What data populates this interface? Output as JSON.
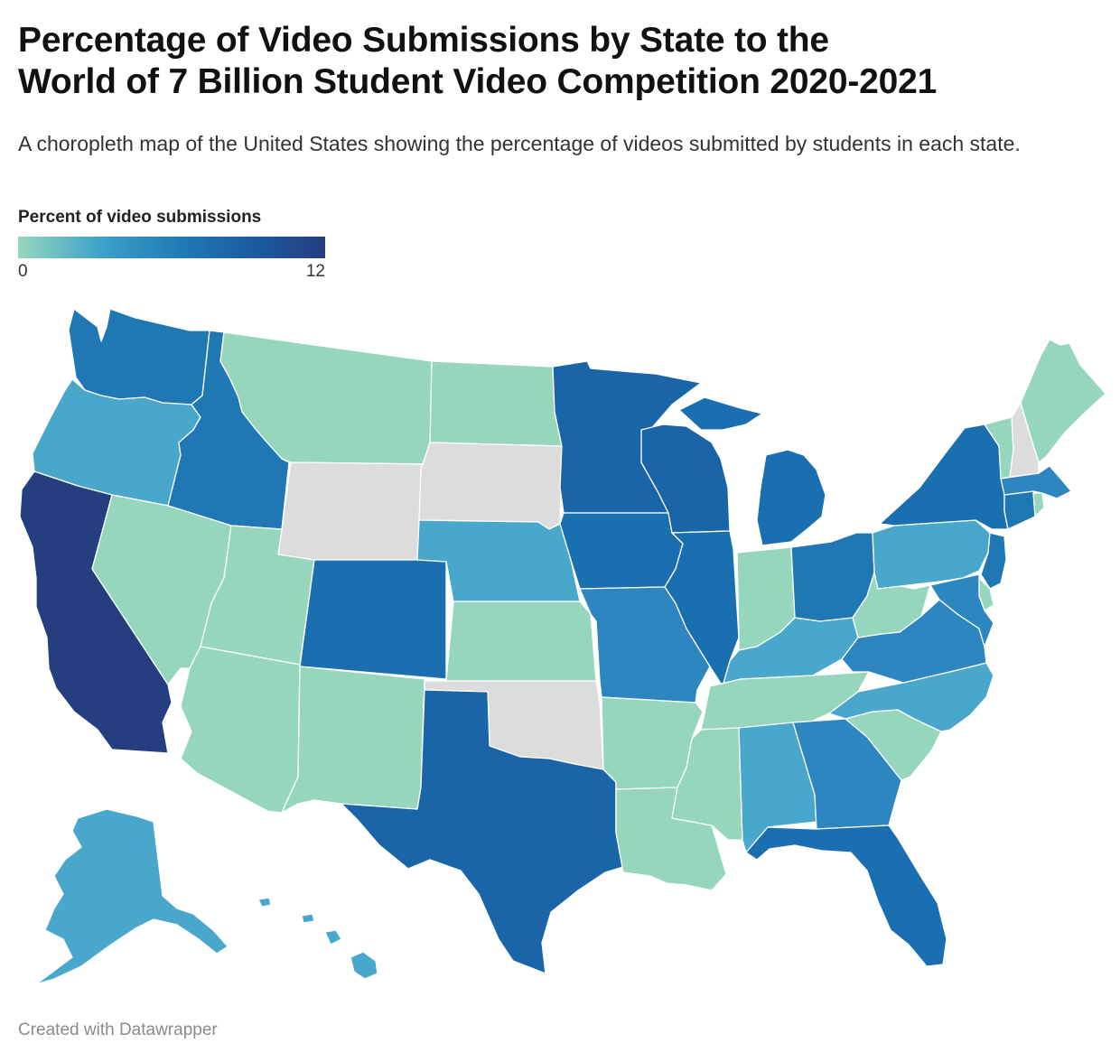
{
  "header": {
    "title_line1": "Percentage of Video Submissions by State to the",
    "title_line2": "World of 7 Billion Student Video Competition 2020-2021",
    "subtitle": "A choropleth map of the United States showing the percentage of videos submitted by students in each state."
  },
  "legend": {
    "title": "Percent of video submissions",
    "min_label": "0",
    "max_label": "12",
    "colors": [
      "#96d6bd",
      "#3aa0c9",
      "#1f77b4",
      "#1b5aa0",
      "#253e7f"
    ],
    "no_data_color": "#dcdcdc"
  },
  "footer": {
    "credit": "Created with Datawrapper"
  },
  "map_data": {
    "type": "choropleth",
    "region": "United States",
    "value_range": [
      0,
      12
    ],
    "states": [
      {
        "name": "Washington",
        "color": "#1f77b4"
      },
      {
        "name": "Oregon",
        "color": "#4aa7cc"
      },
      {
        "name": "California",
        "color": "#253e7f"
      },
      {
        "name": "Idaho",
        "color": "#1f77b4"
      },
      {
        "name": "Nevada",
        "color": "#96d6bd"
      },
      {
        "name": "Montana",
        "color": "#96d6bd"
      },
      {
        "name": "Wyoming",
        "color": "#dcdcdc"
      },
      {
        "name": "Utah",
        "color": "#96d6bd"
      },
      {
        "name": "Arizona",
        "color": "#96d6bd"
      },
      {
        "name": "Colorado",
        "color": "#1b6fb0"
      },
      {
        "name": "New Mexico",
        "color": "#96d6bd"
      },
      {
        "name": "North Dakota",
        "color": "#96d6bd"
      },
      {
        "name": "South Dakota",
        "color": "#dcdcdc"
      },
      {
        "name": "Nebraska",
        "color": "#4aa7cc"
      },
      {
        "name": "Kansas",
        "color": "#96d6bd"
      },
      {
        "name": "Oklahoma",
        "color": "#dcdcdc"
      },
      {
        "name": "Texas",
        "color": "#1a64a8"
      },
      {
        "name": "Minnesota",
        "color": "#1a64a8"
      },
      {
        "name": "Iowa",
        "color": "#1a6fb0"
      },
      {
        "name": "Missouri",
        "color": "#2e86c1"
      },
      {
        "name": "Arkansas",
        "color": "#96d6bd"
      },
      {
        "name": "Louisiana",
        "color": "#96d6bd"
      },
      {
        "name": "Wisconsin",
        "color": "#1a64a8"
      },
      {
        "name": "Illinois",
        "color": "#1a6fb0"
      },
      {
        "name": "Michigan",
        "color": "#1a6fb0"
      },
      {
        "name": "Indiana",
        "color": "#96d6bd"
      },
      {
        "name": "Ohio",
        "color": "#1f77b4"
      },
      {
        "name": "Kentucky",
        "color": "#4aa7cc"
      },
      {
        "name": "Tennessee",
        "color": "#96d6bd"
      },
      {
        "name": "Mississippi",
        "color": "#96d6bd"
      },
      {
        "name": "Alabama",
        "color": "#4aa7cc"
      },
      {
        "name": "Georgia",
        "color": "#2e86c1"
      },
      {
        "name": "Florida",
        "color": "#1a6fb0"
      },
      {
        "name": "South Carolina",
        "color": "#96d6bd"
      },
      {
        "name": "North Carolina",
        "color": "#4aa7cc"
      },
      {
        "name": "Virginia",
        "color": "#2e86c1"
      },
      {
        "name": "West Virginia",
        "color": "#96d6bd"
      },
      {
        "name": "Pennsylvania",
        "color": "#4aa7cc"
      },
      {
        "name": "New York",
        "color": "#1a6fb0"
      },
      {
        "name": "New Jersey",
        "color": "#1f77b4"
      },
      {
        "name": "Delaware",
        "color": "#96d6bd"
      },
      {
        "name": "Maryland",
        "color": "#2e86c1"
      },
      {
        "name": "Connecticut",
        "color": "#1f77b4"
      },
      {
        "name": "Rhode Island",
        "color": "#96d6bd"
      },
      {
        "name": "Massachusetts",
        "color": "#2e86c1"
      },
      {
        "name": "Vermont",
        "color": "#96d6bd"
      },
      {
        "name": "New Hampshire",
        "color": "#dcdcdc"
      },
      {
        "name": "Maine",
        "color": "#96d6bd"
      },
      {
        "name": "Alaska",
        "color": "#4aa7cc"
      },
      {
        "name": "Hawaii",
        "color": "#4aa7cc"
      }
    ]
  }
}
